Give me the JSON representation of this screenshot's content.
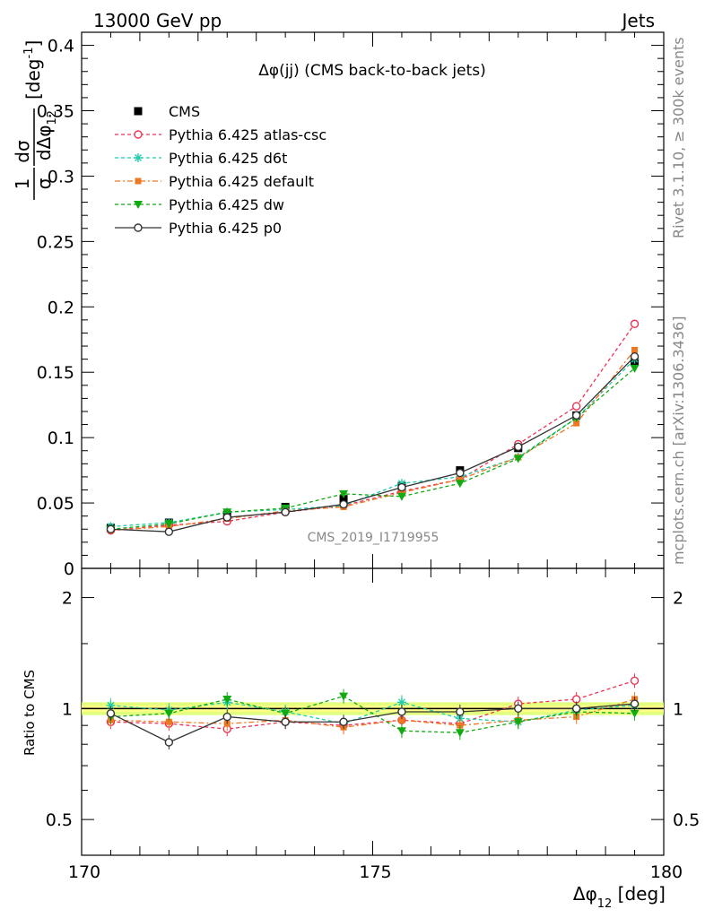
{
  "header": {
    "left": "13000 GeV pp",
    "right": "Jets"
  },
  "side_labels": {
    "rivet": "Rivet 3.1.10, ≥ 300k events",
    "mcplots": "mcplots.cern.ch [arXiv:1306.3436]"
  },
  "watermark": "CMS_2019_I1719955",
  "colors": {
    "CMS": "#000000",
    "atlas-csc": "#ee3355",
    "d6t": "#22ccaa",
    "default": "#ee7722",
    "dw": "#11aa11",
    "p0": "#333333",
    "band": "#ddff66"
  },
  "chart_data": [
    {
      "type": "line",
      "title": "Δφ(jj) (CMS back-to-back jets)",
      "ylabel": "1/σ dσ/dΔφ12 [deg⁻¹]",
      "xlim": [
        170,
        180
      ],
      "ylim": [
        0,
        0.41
      ],
      "yticks": [
        0,
        0.05,
        0.1,
        0.15,
        0.2,
        0.25,
        0.3,
        0.35,
        0.4
      ],
      "ytick_labels": [
        "0",
        "0.05",
        "0.1",
        "0.15",
        "0.2",
        "0.25",
        "0.3",
        "0.35",
        "0.4"
      ],
      "legend_position": "top-left",
      "x": [
        170.5,
        171.5,
        172.5,
        173.5,
        174.5,
        175.5,
        176.5,
        177.5,
        178.5,
        179.5
      ],
      "series": [
        {
          "name": "CMS",
          "key": "CMS",
          "style": "data",
          "values": [
            0.031,
            0.035,
            0.041,
            0.047,
            0.053,
            0.063,
            0.075,
            0.092,
            0.117,
            0.158
          ]
        },
        {
          "name": "Pythia 6.425 atlas-csc",
          "key": "atlas-csc",
          "style": "circle-open",
          "values": [
            0.029,
            0.033,
            0.036,
            0.043,
            0.048,
            0.059,
            0.068,
            0.095,
            0.124,
            0.187
          ]
        },
        {
          "name": "Pythia 6.425 d6t",
          "key": "d6t",
          "style": "star",
          "values": [
            0.032,
            0.035,
            0.043,
            0.045,
            0.048,
            0.065,
            0.07,
            0.085,
            0.115,
            0.16
          ]
        },
        {
          "name": "Pythia 6.425 default",
          "key": "default",
          "style": "square",
          "values": [
            0.029,
            0.032,
            0.038,
            0.044,
            0.047,
            0.058,
            0.068,
            0.085,
            0.111,
            0.167
          ]
        },
        {
          "name": "Pythia 6.425 dw",
          "key": "dw",
          "style": "triangle-down",
          "values": [
            0.03,
            0.034,
            0.043,
            0.046,
            0.057,
            0.055,
            0.065,
            0.084,
            0.115,
            0.153
          ]
        },
        {
          "name": "Pythia 6.425 p0",
          "key": "p0",
          "style": "circle-open-line",
          "values": [
            0.03,
            0.028,
            0.039,
            0.043,
            0.049,
            0.062,
            0.073,
            0.093,
            0.117,
            0.162
          ]
        }
      ]
    },
    {
      "type": "line",
      "ylabel": "Ratio to CMS",
      "xlabel": "Δφ12 [deg]",
      "xlim": [
        170,
        180
      ],
      "xticks": [
        170,
        175,
        180
      ],
      "ylim": [
        0.4,
        2.4
      ],
      "log_y": true,
      "yticks": [
        0.5,
        1,
        2
      ],
      "ytick_labels": [
        "0.5",
        "1",
        "2"
      ],
      "x": [
        170.5,
        171.5,
        172.5,
        173.5,
        174.5,
        175.5,
        176.5,
        177.5,
        178.5,
        179.5
      ],
      "series": [
        {
          "key": "atlas-csc",
          "style": "circle-open",
          "values": [
            0.92,
            0.91,
            0.88,
            0.92,
            0.9,
            0.93,
            0.91,
            1.03,
            1.06,
            1.19
          ]
        },
        {
          "key": "d6t",
          "style": "star",
          "values": [
            1.02,
            0.99,
            1.04,
            0.98,
            0.91,
            1.04,
            0.94,
            0.92,
            0.99,
            1.02
          ]
        },
        {
          "key": "default",
          "style": "square",
          "values": [
            0.93,
            0.92,
            0.91,
            0.93,
            0.89,
            0.93,
            0.9,
            0.93,
            0.95,
            1.06
          ]
        },
        {
          "key": "dw",
          "style": "triangle-down",
          "values": [
            0.95,
            0.97,
            1.06,
            0.97,
            1.08,
            0.87,
            0.86,
            0.92,
            0.98,
            0.97
          ]
        },
        {
          "key": "p0",
          "style": "circle-open-line",
          "values": [
            0.97,
            0.81,
            0.95,
            0.92,
            0.92,
            0.98,
            0.98,
            1.0,
            1.0,
            1.03
          ]
        }
      ]
    }
  ]
}
